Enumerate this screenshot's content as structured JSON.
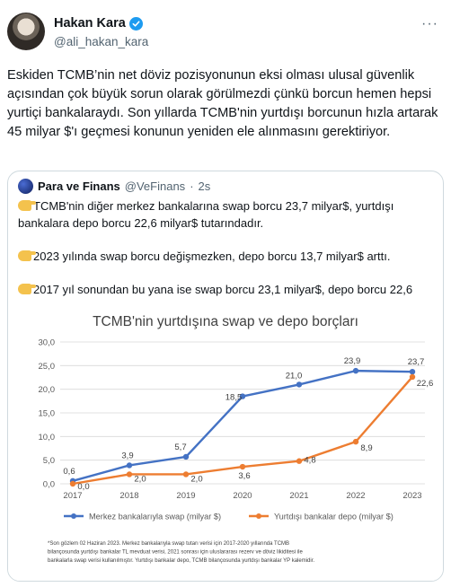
{
  "author": {
    "display_name": "Hakan Kara",
    "handle": "@ali_hakan_kara",
    "verified_icon": "verified-badge-icon",
    "more_label": "···"
  },
  "tweet": {
    "text": "Eskiden TCMB’nin net döviz pozisyonunun eksi olması ulusal güvenlik açısından çok büyük sorun olarak görülmezdi çünkü borcun hemen hepsi yurtiçi bankalaraydı. Son yıllarda TCMB'nin yurtdışı borcunun hızla artarak 45 milyar $'ı geçmesi konunun yeniden ele alınmasını gerektiriyor."
  },
  "quote": {
    "name": "Para ve Finans",
    "handle": "@VeFinans",
    "dot": "·",
    "time": "2s",
    "paragraphs": [
      "TCMB'nin diğer merkez bankalarına swap borcu 23,7 milyar$, yurtdışı bankalara depo borcu 22,6 milyar$ tutarındadır.",
      "2023 yılında swap borcu değişmezken, depo borcu 13,7 milyar$ arttı.",
      "2017 yıl sonundan bu yana ise swap borcu 23,1 milyar$, depo borcu 22,6 milyar$ arttı."
    ]
  },
  "chart_data": {
    "type": "line",
    "title": "TCMB'nin yurtdışına swap ve depo borçları",
    "categories": [
      "2017",
      "2018",
      "2019",
      "2020",
      "2021",
      "2022",
      "2023"
    ],
    "ylim": [
      0,
      30
    ],
    "yticks": [
      "0,0",
      "5,0",
      "10,0",
      "15,0",
      "20,0",
      "25,0",
      "30,0"
    ],
    "ytick_values": [
      0,
      5,
      10,
      15,
      20,
      25,
      30
    ],
    "grid": true,
    "legend_position": "bottom",
    "series": [
      {
        "name": "Merkez bankalarıyla swap (milyar $)",
        "color": "#4472c4",
        "values": [
          0.6,
          3.9,
          5.7,
          18.5,
          21.0,
          23.9,
          23.7
        ],
        "labels": [
          "0,6",
          "3,9",
          "5,7",
          "18,5",
          "21,0",
          "23,9",
          "23,7"
        ]
      },
      {
        "name": "Yurtdışı bankalar depo (milyar $)",
        "color": "#ed7d31",
        "values": [
          0.0,
          2.0,
          2.0,
          3.6,
          4.8,
          8.9,
          22.6
        ],
        "labels": [
          "0,0",
          "2,0",
          "2,0",
          "3,6",
          "4,8",
          "8,9",
          "22,6"
        ]
      }
    ],
    "footnote": [
      "*Son gözlem 02 Haziran 2023. Merkez bankalarıyla swap tutarı verisi için 2017-2020 yıllarında TCMB",
      "bilançosunda yurtdışı bankalar TL mevduat verisi, 2021 sonrası için uluslararası rezerv ve döviz likiditesi ile",
      "bankalarla swap verisi kullanılmıştır. Yurtdışı bankalar depo, TCMB bilançosunda yurtdışı bankalar YP kalemidir."
    ]
  }
}
